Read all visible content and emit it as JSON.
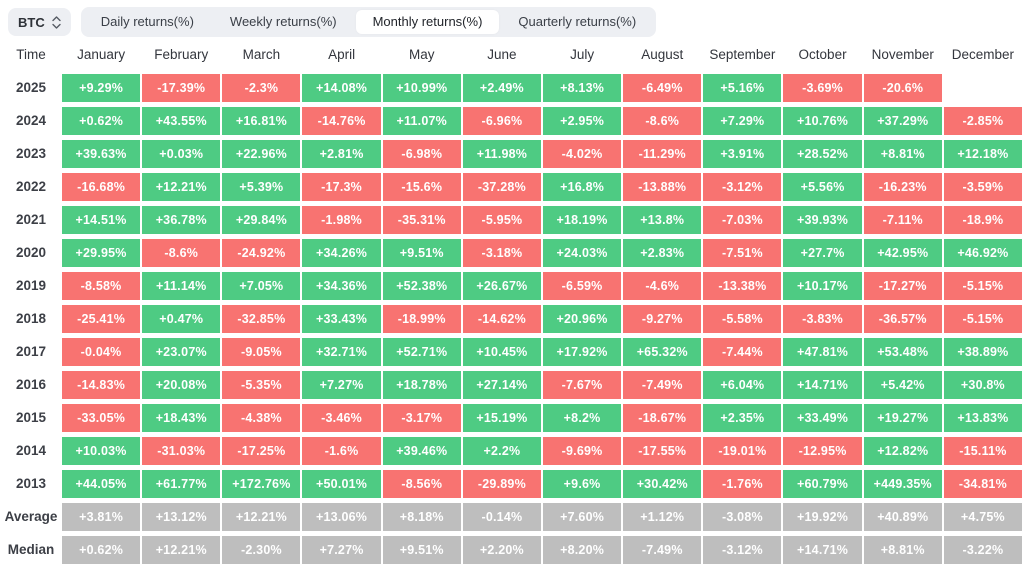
{
  "controls": {
    "symbol": "BTC",
    "tabs": [
      {
        "label": "Daily returns(%)",
        "active": false
      },
      {
        "label": "Weekly returns(%)",
        "active": false
      },
      {
        "label": "Monthly returns(%)",
        "active": true
      },
      {
        "label": "Quarterly returns(%)",
        "active": false
      }
    ]
  },
  "colors": {
    "positive": "#4ecb83",
    "negative": "#f87371",
    "summary": "#bebebe"
  },
  "chart_data": {
    "type": "heatmap",
    "title": "BTC Monthly returns(%)",
    "columns": [
      "January",
      "February",
      "March",
      "April",
      "May",
      "June",
      "July",
      "August",
      "September",
      "October",
      "November",
      "December"
    ],
    "time_header": "Time",
    "rows": [
      {
        "label": "2025",
        "type": "year",
        "values": [
          "+9.29%",
          "-17.39%",
          "-2.3%",
          "+14.08%",
          "+10.99%",
          "+2.49%",
          "+8.13%",
          "-6.49%",
          "+5.16%",
          "-3.69%",
          "-20.6%",
          ""
        ]
      },
      {
        "label": "2024",
        "type": "year",
        "values": [
          "+0.62%",
          "+43.55%",
          "+16.81%",
          "-14.76%",
          "+11.07%",
          "-6.96%",
          "+2.95%",
          "-8.6%",
          "+7.29%",
          "+10.76%",
          "+37.29%",
          "-2.85%"
        ]
      },
      {
        "label": "2023",
        "type": "year",
        "values": [
          "+39.63%",
          "+0.03%",
          "+22.96%",
          "+2.81%",
          "-6.98%",
          "+11.98%",
          "-4.02%",
          "-11.29%",
          "+3.91%",
          "+28.52%",
          "+8.81%",
          "+12.18%"
        ]
      },
      {
        "label": "2022",
        "type": "year",
        "values": [
          "-16.68%",
          "+12.21%",
          "+5.39%",
          "-17.3%",
          "-15.6%",
          "-37.28%",
          "+16.8%",
          "-13.88%",
          "-3.12%",
          "+5.56%",
          "-16.23%",
          "-3.59%"
        ]
      },
      {
        "label": "2021",
        "type": "year",
        "values": [
          "+14.51%",
          "+36.78%",
          "+29.84%",
          "-1.98%",
          "-35.31%",
          "-5.95%",
          "+18.19%",
          "+13.8%",
          "-7.03%",
          "+39.93%",
          "-7.11%",
          "-18.9%"
        ]
      },
      {
        "label": "2020",
        "type": "year",
        "values": [
          "+29.95%",
          "-8.6%",
          "-24.92%",
          "+34.26%",
          "+9.51%",
          "-3.18%",
          "+24.03%",
          "+2.83%",
          "-7.51%",
          "+27.7%",
          "+42.95%",
          "+46.92%"
        ]
      },
      {
        "label": "2019",
        "type": "year",
        "values": [
          "-8.58%",
          "+11.14%",
          "+7.05%",
          "+34.36%",
          "+52.38%",
          "+26.67%",
          "-6.59%",
          "-4.6%",
          "-13.38%",
          "+10.17%",
          "-17.27%",
          "-5.15%"
        ]
      },
      {
        "label": "2018",
        "type": "year",
        "values": [
          "-25.41%",
          "+0.47%",
          "-32.85%",
          "+33.43%",
          "-18.99%",
          "-14.62%",
          "+20.96%",
          "-9.27%",
          "-5.58%",
          "-3.83%",
          "-36.57%",
          "-5.15%"
        ]
      },
      {
        "label": "2017",
        "type": "year",
        "values": [
          "-0.04%",
          "+23.07%",
          "-9.05%",
          "+32.71%",
          "+52.71%",
          "+10.45%",
          "+17.92%",
          "+65.32%",
          "-7.44%",
          "+47.81%",
          "+53.48%",
          "+38.89%"
        ]
      },
      {
        "label": "2016",
        "type": "year",
        "values": [
          "-14.83%",
          "+20.08%",
          "-5.35%",
          "+7.27%",
          "+18.78%",
          "+27.14%",
          "-7.67%",
          "-7.49%",
          "+6.04%",
          "+14.71%",
          "+5.42%",
          "+30.8%"
        ]
      },
      {
        "label": "2015",
        "type": "year",
        "values": [
          "-33.05%",
          "+18.43%",
          "-4.38%",
          "-3.46%",
          "-3.17%",
          "+15.19%",
          "+8.2%",
          "-18.67%",
          "+2.35%",
          "+33.49%",
          "+19.27%",
          "+13.83%"
        ]
      },
      {
        "label": "2014",
        "type": "year",
        "values": [
          "+10.03%",
          "-31.03%",
          "-17.25%",
          "-1.6%",
          "+39.46%",
          "+2.2%",
          "-9.69%",
          "-17.55%",
          "-19.01%",
          "-12.95%",
          "+12.82%",
          "-15.11%"
        ]
      },
      {
        "label": "2013",
        "type": "year",
        "values": [
          "+44.05%",
          "+61.77%",
          "+172.76%",
          "+50.01%",
          "-8.56%",
          "-29.89%",
          "+9.6%",
          "+30.42%",
          "-1.76%",
          "+60.79%",
          "+449.35%",
          "-34.81%"
        ]
      },
      {
        "label": "Average",
        "type": "summary",
        "values": [
          "+3.81%",
          "+13.12%",
          "+12.21%",
          "+13.06%",
          "+8.18%",
          "-0.14%",
          "+7.60%",
          "+1.12%",
          "-3.08%",
          "+19.92%",
          "+40.89%",
          "+4.75%"
        ]
      },
      {
        "label": "Median",
        "type": "summary",
        "values": [
          "+0.62%",
          "+12.21%",
          "-2.30%",
          "+7.27%",
          "+9.51%",
          "+2.20%",
          "+8.20%",
          "-7.49%",
          "-3.12%",
          "+14.71%",
          "+8.81%",
          "-3.22%"
        ]
      }
    ]
  }
}
